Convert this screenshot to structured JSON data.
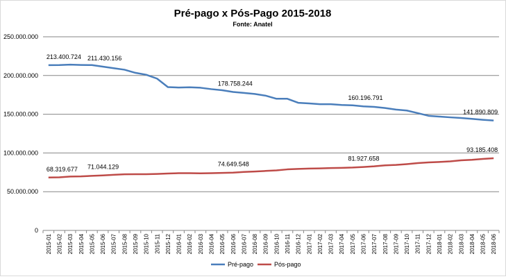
{
  "chart_data": {
    "type": "line",
    "title": "Pré-pago x Pós-Pago 2015-2018",
    "subtitle": "Fonte: Anatel",
    "xlabel": "",
    "ylabel": "",
    "ylim": [
      0,
      250000000
    ],
    "yticks": [
      0,
      50000000,
      100000000,
      150000000,
      200000000,
      250000000
    ],
    "ytick_labels": [
      "0",
      "50.000.000",
      "100.000.000",
      "150.000.000",
      "200.000.000",
      "250.000.000"
    ],
    "grid": true,
    "legend_position": "bottom",
    "categories": [
      "2015-01",
      "2015-02",
      "2015-03",
      "2015-04",
      "2015-05",
      "2015-06",
      "2015-07",
      "2015-08",
      "2015-09",
      "2015-10",
      "2015-11",
      "2015-12",
      "2016-01",
      "2016-02",
      "2016-03",
      "2016-04",
      "2016-05",
      "2016-06",
      "2016-07",
      "2016-08",
      "2016-09",
      "2016-10",
      "2016-11",
      "2016-12",
      "2017-01",
      "2017-02",
      "2017-03",
      "2017-04",
      "2017-05",
      "2017-06",
      "2017-07",
      "2017-08",
      "2017-09",
      "2017-10",
      "2017-11",
      "2017-12",
      "2018-01",
      "2018-02",
      "2018-03",
      "2018-04",
      "2018-05",
      "2018-06"
    ],
    "series": [
      {
        "name": "Pré-pago",
        "color": "#4a7ebb",
        "values": [
          213400724,
          213500000,
          214000000,
          213600000,
          213500000,
          211430156,
          209500000,
          207500000,
          203500000,
          201000000,
          196000000,
          185000000,
          184500000,
          184800000,
          184200000,
          182400000,
          181000000,
          178758244,
          177500000,
          176200000,
          174000000,
          170000000,
          170000000,
          164800000,
          164000000,
          163000000,
          163000000,
          162000000,
          161500000,
          160196791,
          159500000,
          158000000,
          156000000,
          154800000,
          151500000,
          148000000,
          147000000,
          146000000,
          145200000,
          144000000,
          142800000,
          141890809
        ],
        "labels": [
          {
            "index": 0,
            "text": "213.400.724"
          },
          {
            "index": 5,
            "text": "211.430.156"
          },
          {
            "index": 17,
            "text": "178.758.244"
          },
          {
            "index": 29,
            "text": "160.196.791"
          },
          {
            "index": 41,
            "text": "141.890.809"
          }
        ]
      },
      {
        "name": "Pós-pago",
        "color": "#be4b48",
        "values": [
          68319677,
          68500000,
          69600000,
          69800000,
          70400000,
          71044129,
          71800000,
          72500000,
          72600000,
          72600000,
          72900000,
          73500000,
          73900000,
          73900000,
          73700000,
          73900000,
          74300000,
          74649548,
          75500000,
          76000000,
          76800000,
          77500000,
          78800000,
          79400000,
          79900000,
          80100000,
          80500000,
          80800000,
          81200000,
          81927658,
          82800000,
          84000000,
          84600000,
          85600000,
          86900000,
          87800000,
          88400000,
          89200000,
          90500000,
          91200000,
          92300000,
          93185408
        ],
        "labels": [
          {
            "index": 0,
            "text": "68.319.677"
          },
          {
            "index": 5,
            "text": "71.044.129"
          },
          {
            "index": 17,
            "text": "74.649.548"
          },
          {
            "index": 29,
            "text": "81.927.658"
          },
          {
            "index": 41,
            "text": "93.185.408"
          }
        ]
      }
    ]
  }
}
